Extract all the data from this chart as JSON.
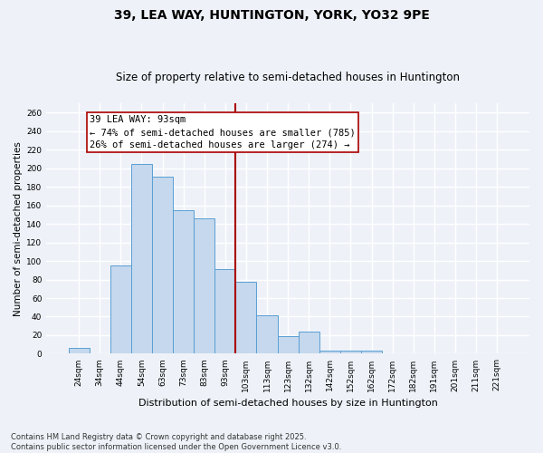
{
  "title": "39, LEA WAY, HUNTINGTON, YORK, YO32 9PE",
  "subtitle": "Size of property relative to semi-detached houses in Huntington",
  "xlabel": "Distribution of semi-detached houses by size in Huntington",
  "ylabel": "Number of semi-detached properties",
  "categories": [
    "24sqm",
    "34sqm",
    "44sqm",
    "54sqm",
    "63sqm",
    "73sqm",
    "83sqm",
    "93sqm",
    "103sqm",
    "113sqm",
    "123sqm",
    "132sqm",
    "142sqm",
    "152sqm",
    "162sqm",
    "172sqm",
    "182sqm",
    "191sqm",
    "201sqm",
    "211sqm",
    "221sqm"
  ],
  "values": [
    6,
    0,
    95,
    205,
    191,
    155,
    146,
    91,
    78,
    41,
    19,
    24,
    3,
    3,
    3,
    0,
    0,
    0,
    0,
    0,
    0
  ],
  "bar_color": "#c5d8ed",
  "bar_edge_color": "#5a9fd4",
  "vline_color": "#aa0000",
  "annotation_text": "39 LEA WAY: 93sqm\n← 74% of semi-detached houses are smaller (785)\n26% of semi-detached houses are larger (274) →",
  "annotation_box_color": "#ffffff",
  "annotation_box_edge": "#aa0000",
  "ylim": [
    0,
    270
  ],
  "yticks": [
    0,
    20,
    40,
    60,
    80,
    100,
    120,
    140,
    160,
    180,
    200,
    220,
    240,
    260
  ],
  "footnote": "Contains HM Land Registry data © Crown copyright and database right 2025.\nContains public sector information licensed under the Open Government Licence v3.0.",
  "bg_color": "#eef2f8",
  "grid_color": "#ffffff",
  "title_fontsize": 10,
  "subtitle_fontsize": 8.5,
  "axis_label_fontsize": 7.5,
  "tick_fontsize": 6.5,
  "annotation_fontsize": 7.5,
  "footnote_fontsize": 6.0
}
